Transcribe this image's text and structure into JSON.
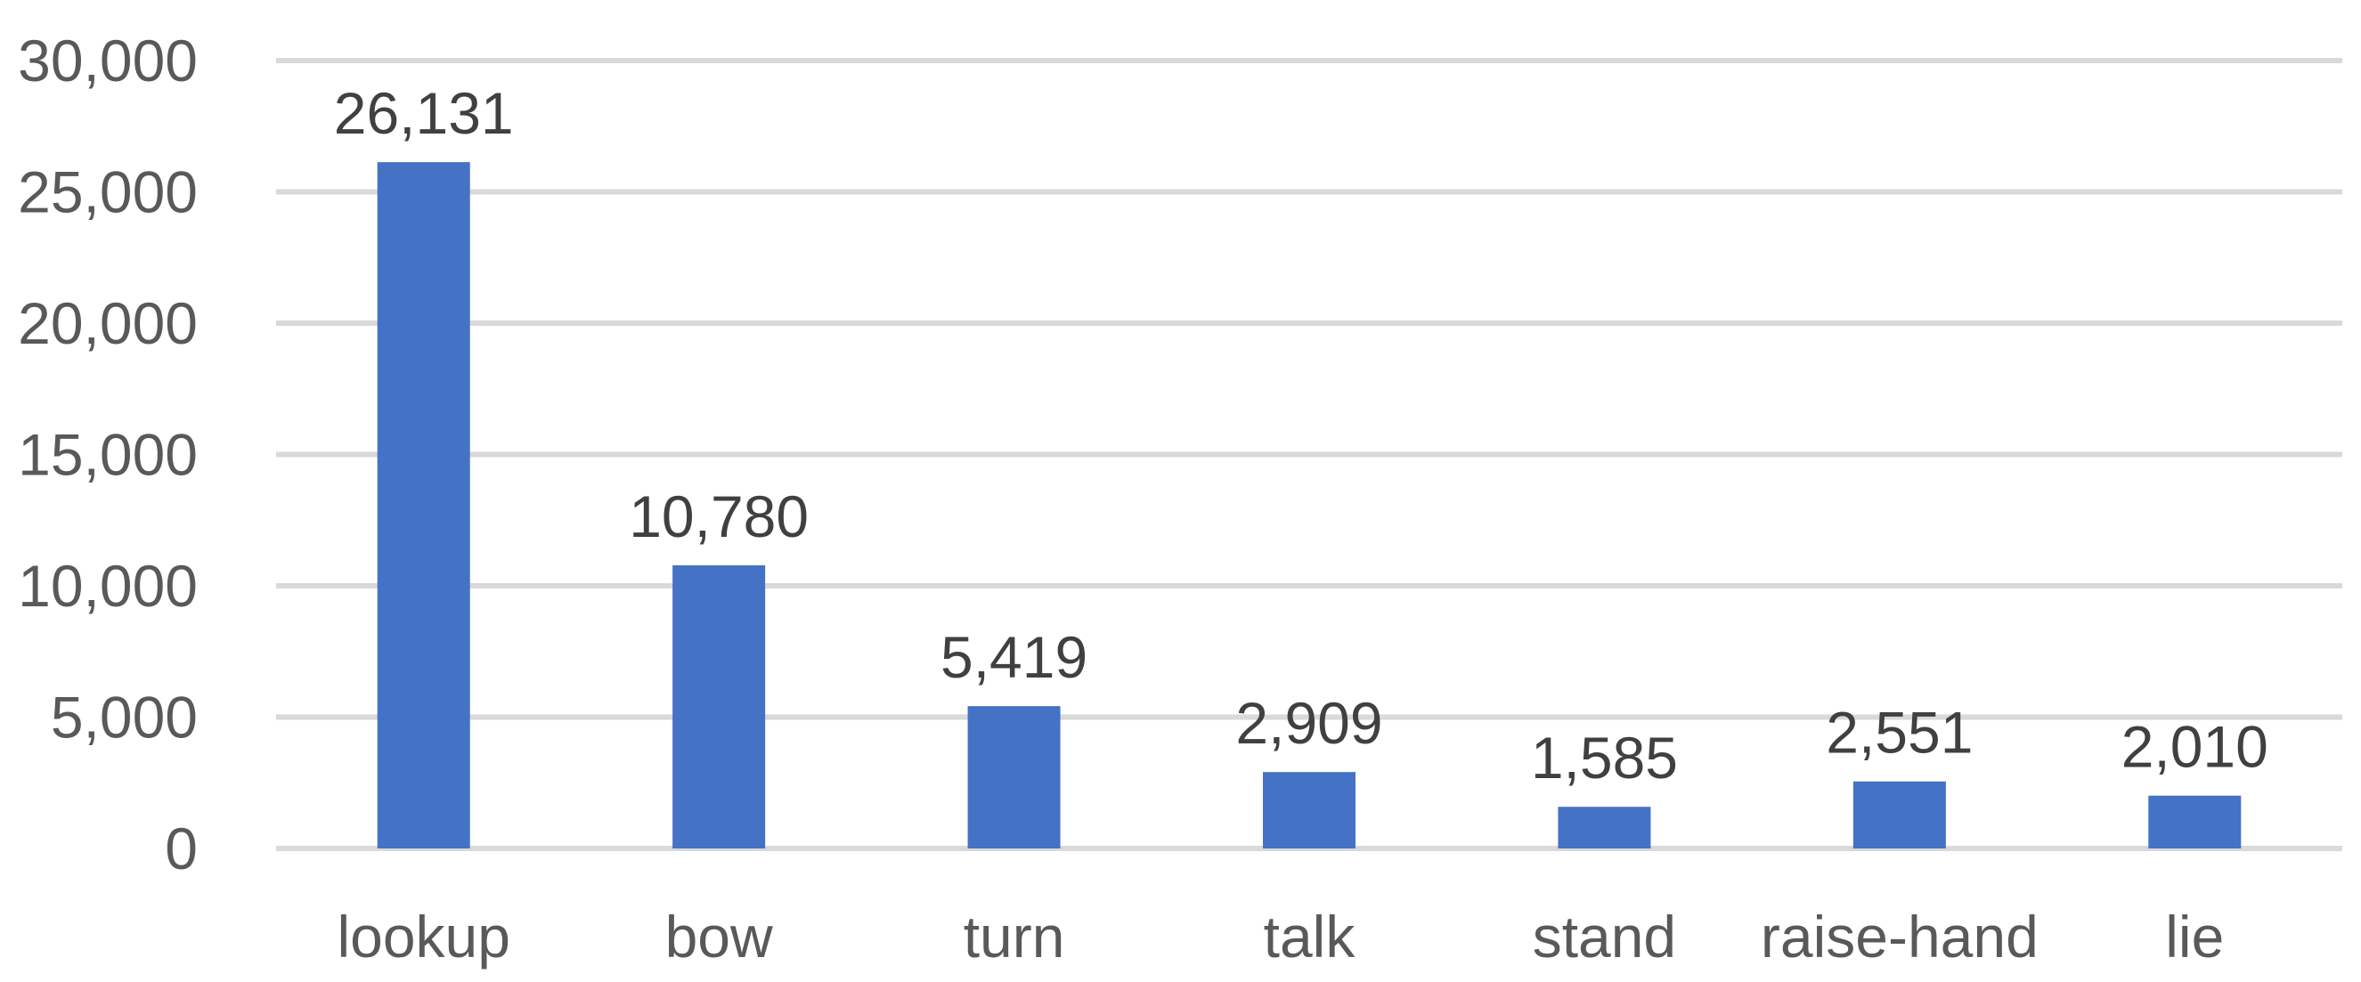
{
  "chart_data": {
    "type": "bar",
    "categories": [
      "lookup",
      "bow",
      "turn",
      "talk",
      "stand",
      "raise-hand",
      "lie"
    ],
    "values": [
      26131,
      10780,
      5419,
      2909,
      1585,
      2551,
      2010
    ],
    "data_labels": [
      "26,131",
      "10,780",
      "5,419",
      "2,909",
      "1,585",
      "2,551",
      "2,010"
    ],
    "y_ticks": [
      0,
      5000,
      10000,
      15000,
      20000,
      25000,
      30000
    ],
    "y_tick_labels": [
      "0",
      "5,000",
      "10,000",
      "15,000",
      "20,000",
      "25,000",
      "30,000"
    ],
    "ylim": [
      0,
      30000
    ],
    "grid": true,
    "legend": "none",
    "title": "",
    "xlabel": "",
    "ylabel": "",
    "bar_color": "#4472c4",
    "grid_color": "#d9d9d9",
    "text_color": "#595959"
  }
}
